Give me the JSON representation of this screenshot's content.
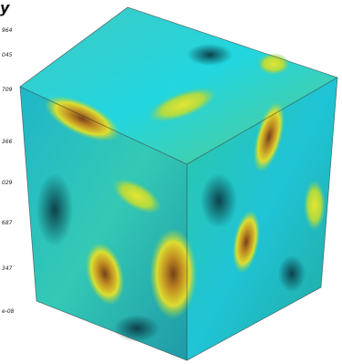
{
  "header": {
    "title": "y"
  },
  "scale_labels": [
    "964",
    "045",
    "709",
    "366",
    "029",
    "687",
    "347",
    "e-08"
  ]
}
